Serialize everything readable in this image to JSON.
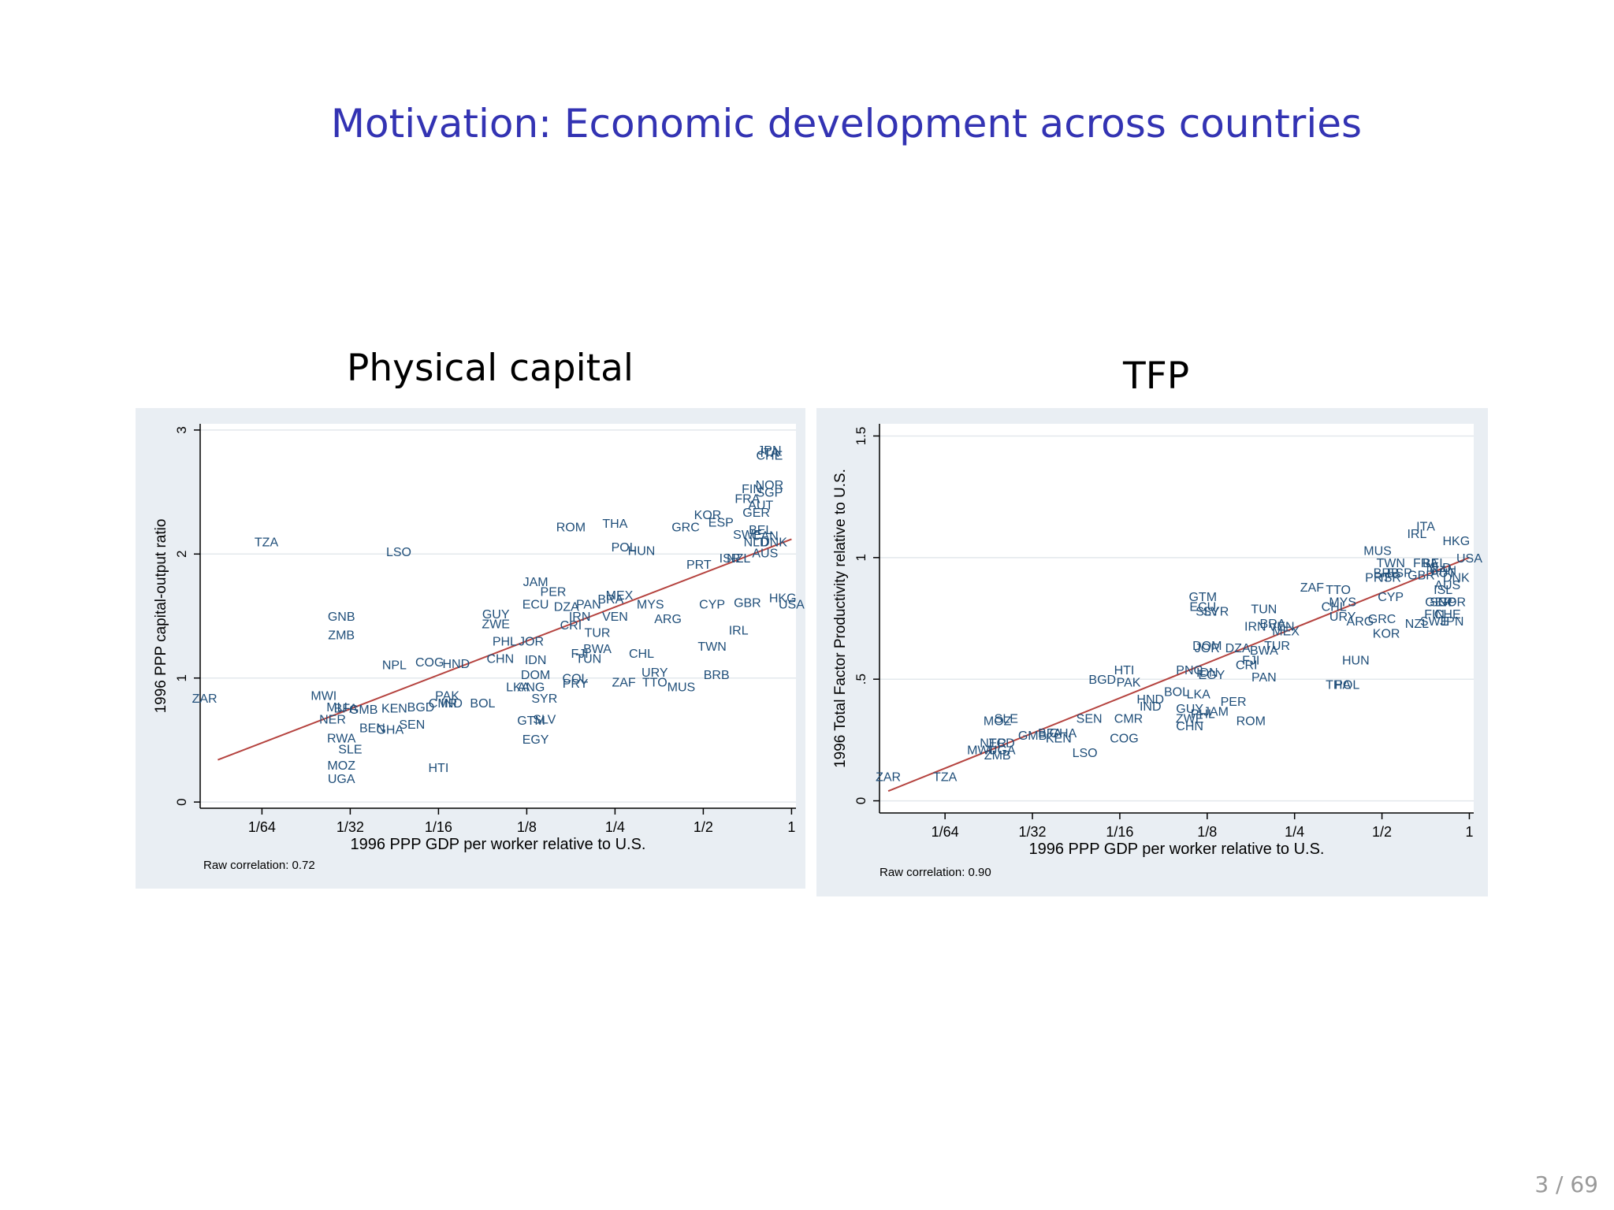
{
  "slide": {
    "title": "Motivation: Economic development across countries",
    "page": "3 / 69"
  },
  "colors": {
    "title": "#3333b3",
    "country_label": "#1f4e79",
    "fit_line": "#b5433f",
    "panel_bg": "#e9eef3",
    "plot_bg": "#ffffff",
    "grid": "#e3e8ec"
  },
  "chart_data": [
    {
      "type": "scatter",
      "title": "Physical capital",
      "xlabel": "1996 PPP GDP per worker relative to U.S.",
      "ylabel": "1996 PPP capital-output ratio",
      "note": "Raw correlation: 0.72",
      "x_scale": "log2",
      "xlim": [
        -6.7,
        0.05
      ],
      "ylim": [
        -0.05,
        3.05
      ],
      "xticks": [
        -6,
        -5,
        -4,
        -3,
        -2,
        -1,
        0
      ],
      "xtick_labels": [
        "1/64",
        "1/32",
        "1/16",
        "1/8",
        "1/4",
        "1/2",
        "1"
      ],
      "yticks": [
        0,
        1,
        2,
        3
      ],
      "ytick_labels": [
        "0",
        "1",
        "2",
        "3"
      ],
      "fit_line": [
        [
          -6.5,
          0.34
        ],
        [
          0,
          2.12
        ]
      ],
      "points": [
        {
          "l": "ZAR",
          "x": -6.65,
          "y": 0.84
        },
        {
          "l": "TZA",
          "x": -5.95,
          "y": 2.1
        },
        {
          "l": "LSO",
          "x": -4.45,
          "y": 2.02
        },
        {
          "l": "GNB",
          "x": -5.1,
          "y": 1.5
        },
        {
          "l": "ZMB",
          "x": -5.1,
          "y": 1.35
        },
        {
          "l": "NPL",
          "x": -4.5,
          "y": 1.11
        },
        {
          "l": "COG",
          "x": -4.1,
          "y": 1.13
        },
        {
          "l": "HND",
          "x": -3.8,
          "y": 1.12
        },
        {
          "l": "MWI",
          "x": -5.3,
          "y": 0.86
        },
        {
          "l": "MLI",
          "x": -5.15,
          "y": 0.77
        },
        {
          "l": "NER",
          "x": -5.2,
          "y": 0.67
        },
        {
          "l": "BFA",
          "x": -5.05,
          "y": 0.76
        },
        {
          "l": "GMB",
          "x": -4.85,
          "y": 0.75
        },
        {
          "l": "KEN",
          "x": -4.5,
          "y": 0.76
        },
        {
          "l": "BGD",
          "x": -4.2,
          "y": 0.77
        },
        {
          "l": "BEN",
          "x": -4.75,
          "y": 0.6
        },
        {
          "l": "GHA",
          "x": -4.55,
          "y": 0.59
        },
        {
          "l": "SEN",
          "x": -4.3,
          "y": 0.63
        },
        {
          "l": "PAK",
          "x": -3.9,
          "y": 0.86
        },
        {
          "l": "IND",
          "x": -3.85,
          "y": 0.8
        },
        {
          "l": "CMR",
          "x": -3.95,
          "y": 0.8
        },
        {
          "l": "BOL",
          "x": -3.5,
          "y": 0.8
        },
        {
          "l": "RWA",
          "x": -5.1,
          "y": 0.52
        },
        {
          "l": "SLE",
          "x": -5.0,
          "y": 0.43
        },
        {
          "l": "MOZ",
          "x": -5.1,
          "y": 0.3
        },
        {
          "l": "UGA",
          "x": -5.1,
          "y": 0.19
        },
        {
          "l": "HTI",
          "x": -4.0,
          "y": 0.28
        },
        {
          "l": "GUY",
          "x": -3.35,
          "y": 1.52
        },
        {
          "l": "ZWE",
          "x": -3.35,
          "y": 1.44
        },
        {
          "l": "PHL",
          "x": -3.25,
          "y": 1.3
        },
        {
          "l": "JOR",
          "x": -2.95,
          "y": 1.3
        },
        {
          "l": "CHN",
          "x": -3.3,
          "y": 1.16
        },
        {
          "l": "IDN",
          "x": -2.9,
          "y": 1.15
        },
        {
          "l": "DOM",
          "x": -2.9,
          "y": 1.03
        },
        {
          "l": "LKA",
          "x": -3.1,
          "y": 0.93
        },
        {
          "l": "ANG",
          "x": -2.95,
          "y": 0.93
        },
        {
          "l": "SYR",
          "x": -2.8,
          "y": 0.84
        },
        {
          "l": "GTM",
          "x": -2.95,
          "y": 0.66
        },
        {
          "l": "SLV",
          "x": -2.8,
          "y": 0.67
        },
        {
          "l": "EGY",
          "x": -2.9,
          "y": 0.51
        },
        {
          "l": "JAM",
          "x": -2.9,
          "y": 1.78
        },
        {
          "l": "PER",
          "x": -2.7,
          "y": 1.7
        },
        {
          "l": "ECU",
          "x": -2.9,
          "y": 1.6
        },
        {
          "l": "DZA",
          "x": -2.55,
          "y": 1.58
        },
        {
          "l": "PAN",
          "x": -2.3,
          "y": 1.6
        },
        {
          "l": "BRA",
          "x": -2.05,
          "y": 1.64
        },
        {
          "l": "MEX",
          "x": -1.95,
          "y": 1.67
        },
        {
          "l": "MYS",
          "x": -1.6,
          "y": 1.6
        },
        {
          "l": "IRN",
          "x": -2.4,
          "y": 1.5
        },
        {
          "l": "CRI",
          "x": -2.5,
          "y": 1.43
        },
        {
          "l": "VEN",
          "x": -2.0,
          "y": 1.5
        },
        {
          "l": "ARG",
          "x": -1.4,
          "y": 1.48
        },
        {
          "l": "TUR",
          "x": -2.2,
          "y": 1.37
        },
        {
          "l": "BWA",
          "x": -2.2,
          "y": 1.24
        },
        {
          "l": "FJI",
          "x": -2.4,
          "y": 1.2
        },
        {
          "l": "TUN",
          "x": -2.3,
          "y": 1.16
        },
        {
          "l": "CHL",
          "x": -1.7,
          "y": 1.2
        },
        {
          "l": "COL",
          "x": -2.45,
          "y": 1.0
        },
        {
          "l": "PRY",
          "x": -2.45,
          "y": 0.96
        },
        {
          "l": "ZAF",
          "x": -1.9,
          "y": 0.97
        },
        {
          "l": "URY",
          "x": -1.55,
          "y": 1.05
        },
        {
          "l": "TTO",
          "x": -1.55,
          "y": 0.97
        },
        {
          "l": "MUS",
          "x": -1.25,
          "y": 0.93
        },
        {
          "l": "BRB",
          "x": -0.85,
          "y": 1.03
        },
        {
          "l": "TWN",
          "x": -0.9,
          "y": 1.26
        },
        {
          "l": "IRL",
          "x": -0.6,
          "y": 1.39
        },
        {
          "l": "CYP",
          "x": -0.9,
          "y": 1.6
        },
        {
          "l": "GBR",
          "x": -0.5,
          "y": 1.61
        },
        {
          "l": "HKG",
          "x": -0.1,
          "y": 1.65
        },
        {
          "l": "USA",
          "x": 0.0,
          "y": 1.6
        },
        {
          "l": "ROM",
          "x": -2.5,
          "y": 2.22
        },
        {
          "l": "THA",
          "x": -2.0,
          "y": 2.25
        },
        {
          "l": "POL",
          "x": -1.9,
          "y": 2.06
        },
        {
          "l": "HUN",
          "x": -1.7,
          "y": 2.03
        },
        {
          "l": "PRT",
          "x": -1.05,
          "y": 1.92
        },
        {
          "l": "ISR",
          "x": -0.7,
          "y": 1.97
        },
        {
          "l": "NZL",
          "x": -0.6,
          "y": 1.97
        },
        {
          "l": "GRC",
          "x": -1.2,
          "y": 2.22
        },
        {
          "l": "KOR",
          "x": -0.95,
          "y": 2.32
        },
        {
          "l": "ESP",
          "x": -0.8,
          "y": 2.26
        },
        {
          "l": "AUS",
          "x": -0.3,
          "y": 2.01
        },
        {
          "l": "SWE",
          "x": -0.5,
          "y": 2.16
        },
        {
          "l": "BEL",
          "x": -0.35,
          "y": 2.2
        },
        {
          "l": "CAN",
          "x": -0.3,
          "y": 2.15
        },
        {
          "l": "NLD",
          "x": -0.4,
          "y": 2.1
        },
        {
          "l": "DNK",
          "x": -0.2,
          "y": 2.1
        },
        {
          "l": "FRA",
          "x": -0.5,
          "y": 2.45
        },
        {
          "l": "AUT",
          "x": -0.35,
          "y": 2.4
        },
        {
          "l": "GER",
          "x": -0.4,
          "y": 2.34
        },
        {
          "l": "FIN",
          "x": -0.45,
          "y": 2.53
        },
        {
          "l": "NOR",
          "x": -0.25,
          "y": 2.56
        },
        {
          "l": "SGP",
          "x": -0.25,
          "y": 2.5
        },
        {
          "l": "JPN",
          "x": -0.25,
          "y": 2.84
        },
        {
          "l": "CHE",
          "x": -0.25,
          "y": 2.8
        },
        {
          "l": "ITA",
          "x": -0.25,
          "y": 2.82
        }
      ]
    },
    {
      "type": "scatter",
      "title": "TFP",
      "xlabel": "1996 PPP GDP per worker relative to U.S.",
      "ylabel": "1996 Total Factor Productivity  relative to U.S.",
      "note": "Raw correlation: 0.90",
      "x_scale": "log2",
      "xlim": [
        -6.75,
        0.05
      ],
      "ylim": [
        -0.05,
        1.55
      ],
      "xticks": [
        -6,
        -5,
        -4,
        -3,
        -2,
        -1,
        0
      ],
      "xtick_labels": [
        "1/64",
        "1/32",
        "1/16",
        "1/8",
        "1/4",
        "1/2",
        "1"
      ],
      "yticks": [
        0,
        0.5,
        1,
        1.5
      ],
      "ytick_labels": [
        "0",
        ".5",
        "1",
        "1.5"
      ],
      "fit_line": [
        [
          -6.65,
          0.04
        ],
        [
          0,
          1.0
        ]
      ],
      "points": [
        {
          "l": "ZAR",
          "x": -6.65,
          "y": 0.1
        },
        {
          "l": "TZA",
          "x": -6.0,
          "y": 0.1
        },
        {
          "l": "MOZ",
          "x": -5.4,
          "y": 0.33
        },
        {
          "l": "SLE",
          "x": -5.3,
          "y": 0.34
        },
        {
          "l": "GMB",
          "x": -5.0,
          "y": 0.27
        },
        {
          "l": "BFA",
          "x": -4.8,
          "y": 0.28
        },
        {
          "l": "GHA",
          "x": -4.65,
          "y": 0.28
        },
        {
          "l": "KEN",
          "x": -4.7,
          "y": 0.26
        },
        {
          "l": "NER",
          "x": -5.45,
          "y": 0.24
        },
        {
          "l": "TCD",
          "x": -5.35,
          "y": 0.24
        },
        {
          "l": "MWI",
          "x": -5.6,
          "y": 0.21
        },
        {
          "l": "ZMB",
          "x": -5.4,
          "y": 0.19
        },
        {
          "l": "UGA",
          "x": -5.35,
          "y": 0.21
        },
        {
          "l": "SEN",
          "x": -4.35,
          "y": 0.34
        },
        {
          "l": "CMR",
          "x": -3.9,
          "y": 0.34
        },
        {
          "l": "COG",
          "x": -3.95,
          "y": 0.26
        },
        {
          "l": "LSO",
          "x": -4.4,
          "y": 0.2
        },
        {
          "l": "HTI",
          "x": -3.95,
          "y": 0.54
        },
        {
          "l": "BGD",
          "x": -4.2,
          "y": 0.5
        },
        {
          "l": "PAK",
          "x": -3.9,
          "y": 0.49
        },
        {
          "l": "HND",
          "x": -3.65,
          "y": 0.42
        },
        {
          "l": "IND",
          "x": -3.65,
          "y": 0.39
        },
        {
          "l": "BOL",
          "x": -3.35,
          "y": 0.45
        },
        {
          "l": "LKA",
          "x": -3.1,
          "y": 0.44
        },
        {
          "l": "GUY",
          "x": -3.2,
          "y": 0.38
        },
        {
          "l": "PHL",
          "x": -3.05,
          "y": 0.36
        },
        {
          "l": "ZWE",
          "x": -3.2,
          "y": 0.34
        },
        {
          "l": "CHN",
          "x": -3.2,
          "y": 0.31
        },
        {
          "l": "JAM",
          "x": -2.9,
          "y": 0.37
        },
        {
          "l": "PER",
          "x": -2.7,
          "y": 0.41
        },
        {
          "l": "ROM",
          "x": -2.5,
          "y": 0.33
        },
        {
          "l": "GTM",
          "x": -3.05,
          "y": 0.84
        },
        {
          "l": "ECU",
          "x": -3.05,
          "y": 0.8
        },
        {
          "l": "SLV",
          "x": -3.0,
          "y": 0.78
        },
        {
          "l": "SYR",
          "x": -2.9,
          "y": 0.78
        },
        {
          "l": "DOM",
          "x": -3.0,
          "y": 0.64
        },
        {
          "l": "JOR",
          "x": -3.0,
          "y": 0.63
        },
        {
          "l": "DZA",
          "x": -2.65,
          "y": 0.63
        },
        {
          "l": "FJI",
          "x": -2.5,
          "y": 0.58
        },
        {
          "l": "CRI",
          "x": -2.55,
          "y": 0.56
        },
        {
          "l": "TUR",
          "x": -2.2,
          "y": 0.64
        },
        {
          "l": "BWA",
          "x": -2.35,
          "y": 0.62
        },
        {
          "l": "PNG",
          "x": -3.2,
          "y": 0.54
        },
        {
          "l": "IDN",
          "x": -3.0,
          "y": 0.53
        },
        {
          "l": "EGY",
          "x": -2.95,
          "y": 0.52
        },
        {
          "l": "PAN",
          "x": -2.35,
          "y": 0.51
        },
        {
          "l": "TUN",
          "x": -2.35,
          "y": 0.79
        },
        {
          "l": "IRN",
          "x": -2.45,
          "y": 0.72
        },
        {
          "l": "BRA",
          "x": -2.25,
          "y": 0.73
        },
        {
          "l": "VEN",
          "x": -2.15,
          "y": 0.72
        },
        {
          "l": "MEX",
          "x": -2.1,
          "y": 0.7
        },
        {
          "l": "ZAF",
          "x": -1.8,
          "y": 0.88
        },
        {
          "l": "TTO",
          "x": -1.5,
          "y": 0.87
        },
        {
          "l": "CHL",
          "x": -1.55,
          "y": 0.8
        },
        {
          "l": "MYS",
          "x": -1.45,
          "y": 0.82
        },
        {
          "l": "URY",
          "x": -1.45,
          "y": 0.76
        },
        {
          "l": "ARG",
          "x": -1.25,
          "y": 0.74
        },
        {
          "l": "GRC",
          "x": -1.0,
          "y": 0.75
        },
        {
          "l": "HUN",
          "x": -1.3,
          "y": 0.58
        },
        {
          "l": "THA",
          "x": -1.5,
          "y": 0.48
        },
        {
          "l": "POL",
          "x": -1.4,
          "y": 0.48
        },
        {
          "l": "KOR",
          "x": -0.95,
          "y": 0.69
        },
        {
          "l": "NZL",
          "x": -0.6,
          "y": 0.73
        },
        {
          "l": "CYP",
          "x": -0.9,
          "y": 0.84
        },
        {
          "l": "MUS",
          "x": -1.05,
          "y": 1.03
        },
        {
          "l": "TWN",
          "x": -0.9,
          "y": 0.98
        },
        {
          "l": "PRT",
          "x": -1.05,
          "y": 0.92
        },
        {
          "l": "ISR",
          "x": -0.9,
          "y": 0.92
        },
        {
          "l": "BRB",
          "x": -0.95,
          "y": 0.94
        },
        {
          "l": "ESP",
          "x": -0.8,
          "y": 0.94
        },
        {
          "l": "GBR",
          "x": -0.55,
          "y": 0.93
        },
        {
          "l": "FRA",
          "x": -0.5,
          "y": 0.98
        },
        {
          "l": "BEL",
          "x": -0.4,
          "y": 0.98
        },
        {
          "l": "NLD",
          "x": -0.35,
          "y": 0.96
        },
        {
          "l": "AUT",
          "x": -0.3,
          "y": 0.94
        },
        {
          "l": "DNK",
          "x": -0.15,
          "y": 0.92
        },
        {
          "l": "AUS",
          "x": -0.25,
          "y": 0.89
        },
        {
          "l": "ISL",
          "x": -0.3,
          "y": 0.87
        },
        {
          "l": "GER",
          "x": -0.35,
          "y": 0.82
        },
        {
          "l": "SGP",
          "x": -0.3,
          "y": 0.82
        },
        {
          "l": "NOR",
          "x": -0.2,
          "y": 0.82
        },
        {
          "l": "FIN",
          "x": -0.4,
          "y": 0.77
        },
        {
          "l": "CHE",
          "x": -0.25,
          "y": 0.77
        },
        {
          "l": "SWE",
          "x": -0.4,
          "y": 0.74
        },
        {
          "l": "JPN",
          "x": -0.2,
          "y": 0.74
        },
        {
          "l": "CAN",
          "x": -0.3,
          "y": 0.95
        },
        {
          "l": "IRL",
          "x": -0.6,
          "y": 1.1
        },
        {
          "l": "ITA",
          "x": -0.5,
          "y": 1.13
        },
        {
          "l": "HKG",
          "x": -0.15,
          "y": 1.07
        },
        {
          "l": "USA",
          "x": 0.0,
          "y": 1.0
        }
      ]
    }
  ]
}
